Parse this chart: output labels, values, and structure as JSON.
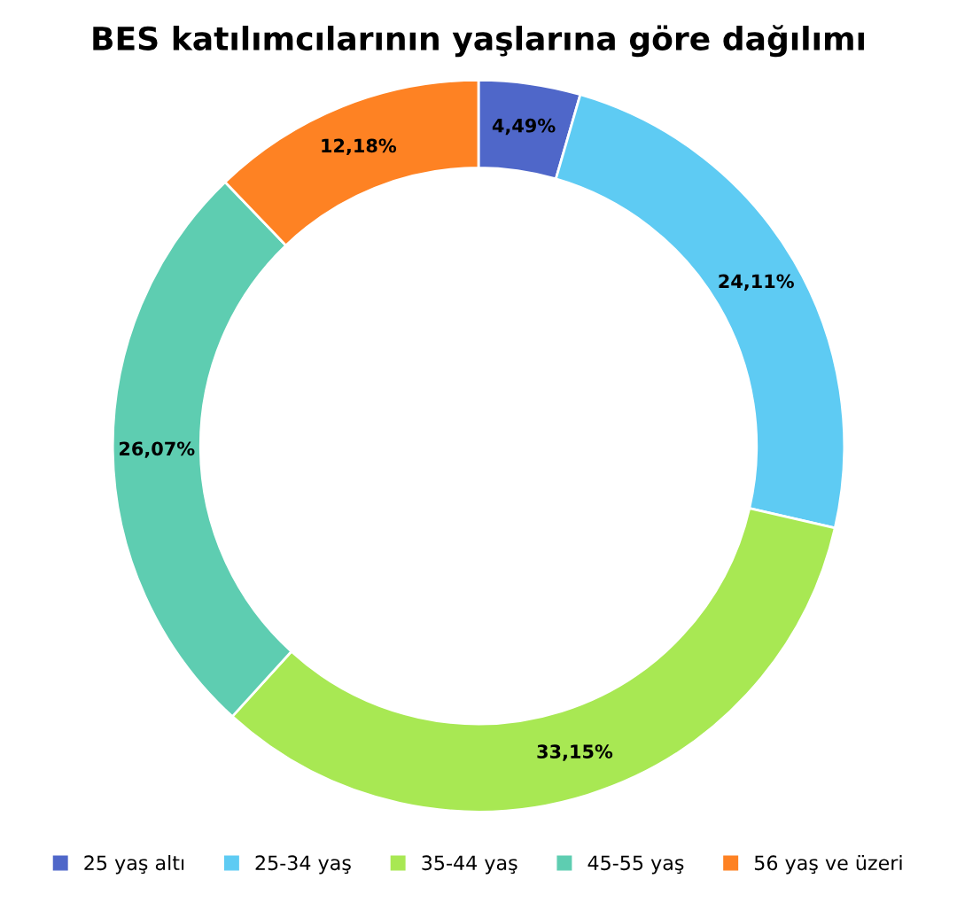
{
  "chart_data": {
    "type": "donut",
    "title": "BES katılımcılarının yaşlarına göre dağılımı",
    "categories": [
      "25 yaş altı",
      "25-34 yaş",
      "35-44 yaş",
      "45-55 yaş",
      "56 yaş ve üzeri"
    ],
    "values": [
      4.49,
      24.11,
      33.15,
      26.07,
      12.18
    ],
    "value_labels": [
      "4,49%",
      "24,11%",
      "33,15%",
      "26,07%",
      "12,18%"
    ],
    "colors": [
      "#4f67c9",
      "#5ecbf3",
      "#a8e853",
      "#5ecdb1",
      "#fe8223"
    ],
    "legend": "bottom"
  }
}
